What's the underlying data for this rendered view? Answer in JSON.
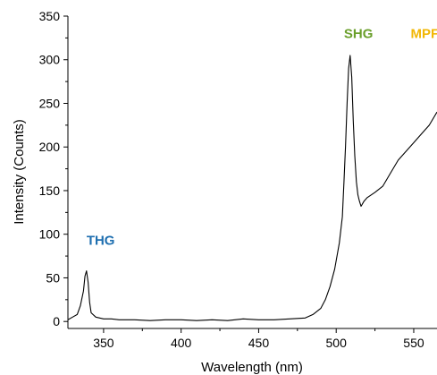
{
  "chart_data": {
    "type": "line",
    "title": "",
    "xlabel": "Wavelength (nm)",
    "ylabel": "Intensity (Counts)",
    "xlim": [
      327,
      565
    ],
    "ylim": [
      -8,
      350
    ],
    "xticks": [
      350,
      400,
      450,
      500,
      550
    ],
    "yticks": [
      0,
      50,
      100,
      150,
      200,
      250,
      300,
      350
    ],
    "grid": false,
    "legend": "none",
    "series": [
      {
        "color": "#000000",
        "x": [
          327,
          330,
          333,
          335,
          337,
          338,
          339,
          340,
          341,
          342,
          345,
          350,
          355,
          360,
          370,
          380,
          390,
          400,
          410,
          420,
          430,
          440,
          450,
          460,
          470,
          480,
          485,
          490,
          493,
          496,
          499,
          502,
          504,
          505,
          506,
          507,
          508,
          509,
          510,
          511,
          512,
          513,
          514,
          515,
          516,
          518,
          520,
          525,
          530,
          535,
          540,
          545,
          550,
          555,
          560,
          565
        ],
        "y": [
          2,
          5,
          8,
          18,
          35,
          52,
          58,
          45,
          22,
          10,
          5,
          3,
          3,
          2,
          2,
          1,
          2,
          2,
          1,
          2,
          1,
          3,
          2,
          2,
          3,
          4,
          8,
          15,
          25,
          40,
          60,
          90,
          120,
          160,
          200,
          250,
          290,
          305,
          280,
          230,
          190,
          160,
          145,
          138,
          132,
          138,
          142,
          148,
          155,
          170,
          185,
          195,
          205,
          215,
          225,
          240
        ]
      }
    ],
    "annotations": [
      {
        "text": "THG",
        "x": 339,
        "y": 88,
        "color": "#1f6fb0"
      },
      {
        "text": "SHG",
        "x": 505,
        "y": 325,
        "color": "#6a9f2b"
      },
      {
        "text": "MPF",
        "x": 548,
        "y": 325,
        "color": "#f2b705"
      }
    ]
  }
}
